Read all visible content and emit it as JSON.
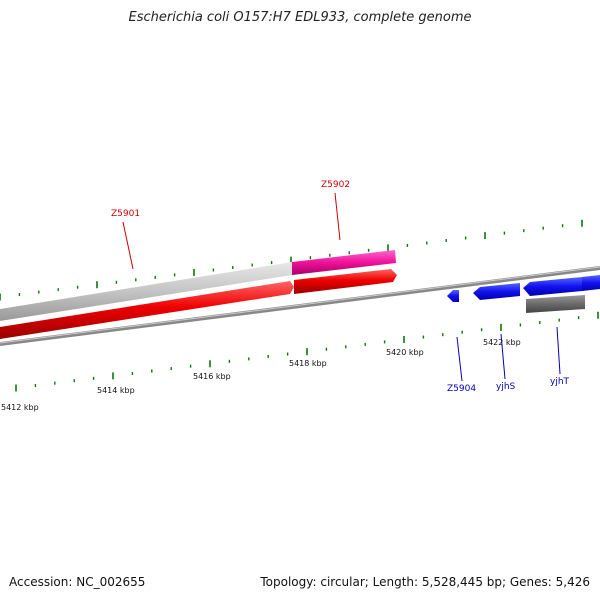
{
  "title": "Escherichia coli O157:H7 EDL933, complete genome",
  "accession": "Accession: NC_002655",
  "summary": "Topology: circular; Length: 5,528,445 bp; Genes: 5,426",
  "scale_labels": [
    "5412 kbp",
    "5414 kbp",
    "5416 kbp",
    "5418 kbp",
    "5420 kbp",
    "5422 kbp"
  ],
  "gene_labels": {
    "z5901": "Z5901",
    "z5902": "Z5902",
    "z5904": "Z5904",
    "yjhs": "yjhS",
    "yjht": "yjhT"
  },
  "colors": {
    "tick": "#0a7a0a",
    "backbone": "#777777",
    "gene_red": "#ee0000",
    "gene_gray": "#c4c4c4",
    "gene_pink": "#ee1199",
    "gene_blue": "#1111ee",
    "gene_darkgray": "#6a6a6a",
    "label_red": "#cc0000",
    "label_blue": "#0000bb"
  }
}
